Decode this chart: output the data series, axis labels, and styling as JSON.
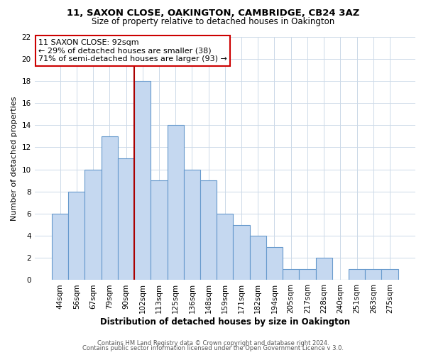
{
  "title1": "11, SAXON CLOSE, OAKINGTON, CAMBRIDGE, CB24 3AZ",
  "title2": "Size of property relative to detached houses in Oakington",
  "xlabel": "Distribution of detached houses by size in Oakington",
  "ylabel": "Number of detached properties",
  "footer1": "Contains HM Land Registry data © Crown copyright and database right 2024.",
  "footer2": "Contains public sector information licensed under the Open Government Licence v 3.0.",
  "bin_labels": [
    "44sqm",
    "56sqm",
    "67sqm",
    "79sqm",
    "90sqm",
    "102sqm",
    "113sqm",
    "125sqm",
    "136sqm",
    "148sqm",
    "159sqm",
    "171sqm",
    "182sqm",
    "194sqm",
    "205sqm",
    "217sqm",
    "228sqm",
    "240sqm",
    "251sqm",
    "263sqm",
    "275sqm"
  ],
  "bar_values": [
    6,
    8,
    10,
    13,
    11,
    18,
    9,
    14,
    10,
    9,
    6,
    5,
    4,
    3,
    1,
    1,
    2,
    0,
    1,
    1,
    1
  ],
  "bar_color": "#c5d8f0",
  "bar_edge_color": "#6699cc",
  "vline_index": 4,
  "vline_color": "#aa0000",
  "ylim": [
    0,
    22
  ],
  "yticks": [
    0,
    2,
    4,
    6,
    8,
    10,
    12,
    14,
    16,
    18,
    20,
    22
  ],
  "annotation_title": "11 SAXON CLOSE: 92sqm",
  "annotation_line1": "← 29% of detached houses are smaller (38)",
  "annotation_line2": "71% of semi-detached houses are larger (93) →",
  "annotation_box_facecolor": "#ffffff",
  "annotation_box_edgecolor": "#cc0000",
  "title1_fontsize": 9.5,
  "title2_fontsize": 8.5,
  "xlabel_fontsize": 8.5,
  "ylabel_fontsize": 8,
  "tick_fontsize": 7.5,
  "annotation_fontsize": 8,
  "footer_fontsize": 6
}
